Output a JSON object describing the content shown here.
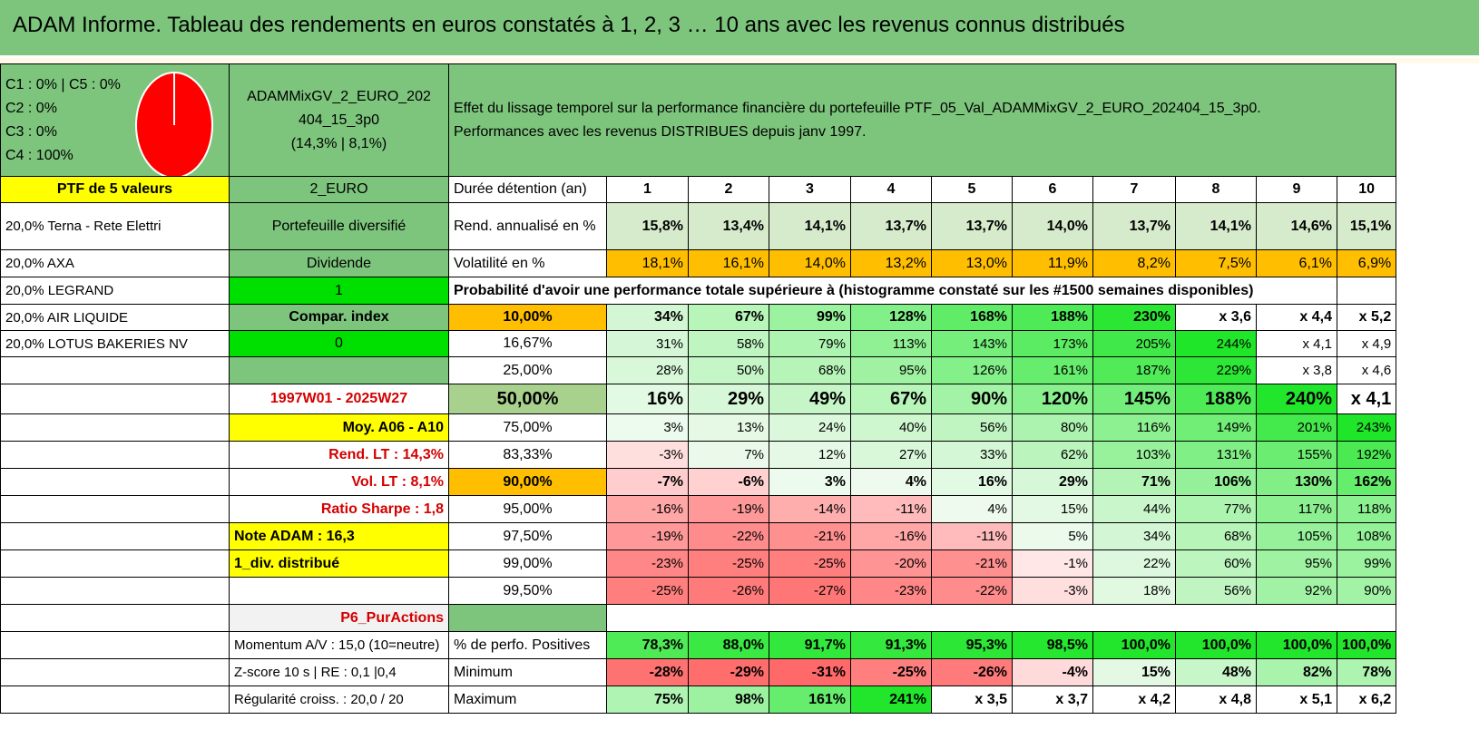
{
  "title": "ADAM Informe. Tableau des rendements en euros constatés à 1, 2, 3 … 10 ans avec les revenus connus distribués",
  "summary": {
    "classes": [
      "C1 : 0% | C5 : 0%",
      "C2 : 0%",
      "C3 : 0%",
      "C4 : 100%"
    ],
    "pie": {
      "slices": [
        {
          "label": "C4",
          "value": 100,
          "color": "#ff0000"
        }
      ]
    },
    "fund_name": "ADAMMixGV_2_EURO_202404_15_3p0",
    "fund_name_line1": "ADAMMixGV_2_EURO_202",
    "fund_name_line2": "404_15_3p0",
    "fund_stats": "(14,3% | 8,1%)",
    "description_line1": "Effet du lissage temporel sur la performance financière du portefeuille PTF_05_Val_ADAMMixGV_2_EURO_202404_15_3p0.",
    "description_line2": "Performances avec les revenus DISTRIBUES depuis janv 1997."
  },
  "left_col": {
    "ptf_label": "PTF de 5 valeurs",
    "holdings": [
      "20,0% Terna - Rete Elettri",
      "20,0% AXA",
      "20,0% LEGRAND",
      "20,0% AIR LIQUIDE",
      "20,0% LOTUS BAKERIES NV"
    ]
  },
  "mid_col": {
    "currency": "2_EURO",
    "type": "Portefeuille diversifié",
    "dividend_label": "Dividende",
    "dividend_value": "1",
    "compar_label": "Compar. index",
    "compar_value": "0",
    "period": "1997W01 - 2025W27",
    "moy": "Moy. A06 - A10",
    "rend_lt": "Rend. LT : 14,3%",
    "vol_lt": "Vol. LT : 8,1%",
    "sharpe": "Ratio Sharpe : 1,8",
    "note": "Note ADAM : 16,3",
    "div_distrib": "1_div. distribué",
    "p6": "P6_PurActions",
    "momentum": "Momentum A/V : 15,0 (10=neutre)",
    "zscore": "Z-score 10 s | RE : 0,1 |0,4",
    "regularite": "Régularité croiss. : 20,0 / 20"
  },
  "table": {
    "duration_label": "Durée détention (an)",
    "years": [
      "1",
      "2",
      "3",
      "4",
      "5",
      "6",
      "7",
      "8",
      "9",
      "10"
    ],
    "rend_label": "Rend. annualisé en %",
    "rend": [
      "15,8%",
      "13,4%",
      "14,1%",
      "13,7%",
      "13,7%",
      "14,0%",
      "13,7%",
      "14,1%",
      "14,6%",
      "15,1%"
    ],
    "vol_label": "Volatilité en %",
    "vol": [
      "18,1%",
      "16,1%",
      "14,0%",
      "13,2%",
      "13,0%",
      "11,9%",
      "8,2%",
      "7,5%",
      "6,1%",
      "6,9%"
    ],
    "prob_header": "Probabilité d'avoir une performance totale supérieure à (histogramme constaté sur les #1500 semaines disponibles)",
    "quantiles": [
      {
        "label": "10,00%",
        "values": [
          "34%",
          "67%",
          "99%",
          "128%",
          "168%",
          "188%",
          "230%",
          "x 3,6",
          "x 4,4",
          "x 5,2"
        ]
      },
      {
        "label": "16,67%",
        "values": [
          "31%",
          "58%",
          "79%",
          "113%",
          "143%",
          "173%",
          "205%",
          "244%",
          "x 4,1",
          "x 4,9"
        ]
      },
      {
        "label": "25,00%",
        "values": [
          "28%",
          "50%",
          "68%",
          "95%",
          "126%",
          "161%",
          "187%",
          "229%",
          "x 3,8",
          "x 4,6"
        ]
      },
      {
        "label": "50,00%",
        "values": [
          "16%",
          "29%",
          "49%",
          "67%",
          "90%",
          "120%",
          "145%",
          "188%",
          "240%",
          "x 4,1"
        ]
      },
      {
        "label": "75,00%",
        "values": [
          "3%",
          "13%",
          "24%",
          "40%",
          "56%",
          "80%",
          "116%",
          "149%",
          "201%",
          "243%"
        ]
      },
      {
        "label": "83,33%",
        "values": [
          "-3%",
          "7%",
          "12%",
          "27%",
          "33%",
          "62%",
          "103%",
          "131%",
          "155%",
          "192%"
        ]
      },
      {
        "label": "90,00%",
        "values": [
          "-7%",
          "-6%",
          "3%",
          "4%",
          "16%",
          "29%",
          "71%",
          "106%",
          "130%",
          "162%"
        ]
      },
      {
        "label": "95,00%",
        "values": [
          "-16%",
          "-19%",
          "-14%",
          "-11%",
          "4%",
          "15%",
          "44%",
          "77%",
          "117%",
          "118%"
        ]
      },
      {
        "label": "97,50%",
        "values": [
          "-19%",
          "-22%",
          "-21%",
          "-16%",
          "-11%",
          "5%",
          "34%",
          "68%",
          "105%",
          "108%"
        ]
      },
      {
        "label": "99,00%",
        "values": [
          "-23%",
          "-25%",
          "-25%",
          "-20%",
          "-21%",
          "-1%",
          "22%",
          "60%",
          "95%",
          "99%"
        ]
      },
      {
        "label": "99,50%",
        "values": [
          "-25%",
          "-26%",
          "-27%",
          "-23%",
          "-22%",
          "-3%",
          "18%",
          "56%",
          "92%",
          "90%"
        ]
      }
    ],
    "pos_label": "% de perfo. Positives",
    "pos": [
      "78,3%",
      "88,0%",
      "91,7%",
      "91,3%",
      "95,3%",
      "98,5%",
      "100,0%",
      "100,0%",
      "100,0%",
      "100,0%"
    ],
    "min_label": "Minimum",
    "min": [
      "-28%",
      "-29%",
      "-31%",
      "-25%",
      "-26%",
      "-4%",
      "15%",
      "48%",
      "82%",
      "78%"
    ],
    "max_label": "Maximum",
    "max": [
      "75%",
      "98%",
      "161%",
      "241%",
      "x 3,5",
      "x 3,7",
      "x 4,2",
      "x 4,8",
      "x 5,1",
      "x 6,2"
    ]
  },
  "colors": {
    "header_green": "#7dc57d",
    "highlight_yellow": "#ffff00",
    "highlight_orange": "#ffbf00",
    "bright_green": "#00e000",
    "red_text": "#d40000"
  }
}
